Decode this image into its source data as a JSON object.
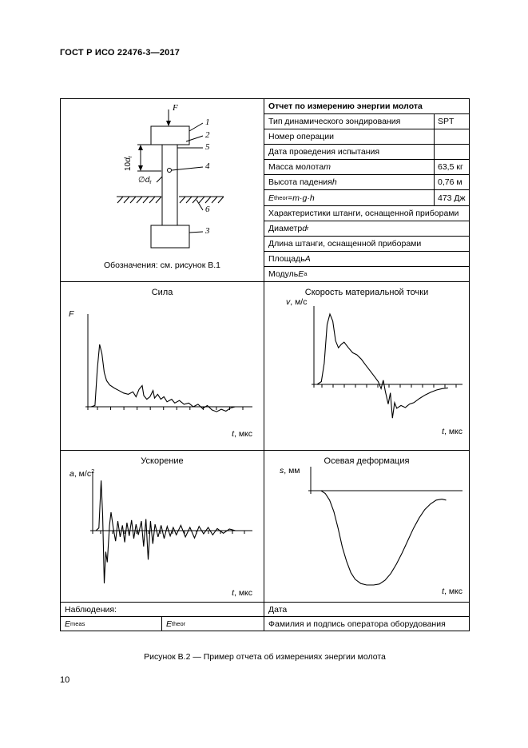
{
  "page": {
    "header": "ГОСТ Р ИСО 22476-3—2017",
    "caption": "Рисунок В.2 — Пример отчета об измерениях энергии молота",
    "page_number": "10"
  },
  "diagram": {
    "caption": "Обозначения: см. рисунок В.1",
    "force_label": [
      {
        "t": "F",
        "i": true
      }
    ],
    "callouts": [
      "1",
      "2",
      "5",
      "4",
      "6",
      "3"
    ],
    "dim_label": [
      {
        "t": "10"
      },
      {
        "t": "d",
        "i": true
      },
      {
        "t": "r",
        "sub": true
      }
    ],
    "diameter_label": [
      {
        "t": "∅"
      },
      {
        "t": "d",
        "i": true
      },
      {
        "t": "r",
        "sub": true
      }
    ]
  },
  "report": {
    "title": "Отчет по измерению энергии молота",
    "rows": [
      {
        "label": [
          {
            "t": "Тип динамического зондирования"
          }
        ],
        "value": "SPT"
      },
      {
        "label": [
          {
            "t": "Номер операции"
          }
        ],
        "value": ""
      },
      {
        "label": [
          {
            "t": "Дата проведения испытания"
          }
        ],
        "value": ""
      },
      {
        "label": [
          {
            "t": "Масса молота "
          },
          {
            "t": "m",
            "i": true
          }
        ],
        "value": "63,5 кг"
      },
      {
        "label": [
          {
            "t": "Высота падения "
          },
          {
            "t": "h",
            "i": true
          }
        ],
        "value": "0,76 м"
      },
      {
        "label": [
          {
            "t": "E",
            "i": true
          },
          {
            "t": "theor",
            "sub": true
          },
          {
            "t": " = "
          },
          {
            "t": "m·g·h",
            "i": true
          }
        ],
        "value": "473 Дж"
      },
      {
        "label": [
          {
            "t": "Характеристики штанги, оснащенной приборами"
          }
        ],
        "full": true
      },
      {
        "label": [
          {
            "t": "Диаметр "
          },
          {
            "t": "d",
            "i": true
          },
          {
            "t": "r",
            "sub": true
          }
        ],
        "full": true
      },
      {
        "label": [
          {
            "t": "Длина штанги, оснащенной приборами"
          }
        ],
        "full": true
      },
      {
        "label": [
          {
            "t": "Площадь "
          },
          {
            "t": "A",
            "i": true
          }
        ],
        "full": true
      },
      {
        "label": [
          {
            "t": "Модуль "
          },
          {
            "t": "E",
            "i": true
          },
          {
            "t": "a",
            "sub": true
          }
        ],
        "full": true
      }
    ]
  },
  "chart_data": [
    {
      "type": "line",
      "title": "Сила",
      "ylabel": "F",
      "xlabel": "t, мкс",
      "ylabel_segs": [
        {
          "t": "F",
          "i": true
        }
      ],
      "xlabel_segs": [
        {
          "t": "t",
          "i": true
        },
        {
          "t": ", мкс"
        }
      ],
      "x_range": [
        0,
        1
      ],
      "y_range": [
        -0.1,
        1
      ],
      "units": "normalized (no numeric scale shown)",
      "points": [
        [
          0.0,
          0.0
        ],
        [
          0.025,
          0.02
        ],
        [
          0.04,
          0.6
        ],
        [
          0.055,
          1.0
        ],
        [
          0.07,
          0.85
        ],
        [
          0.085,
          0.55
        ],
        [
          0.1,
          0.42
        ],
        [
          0.12,
          0.35
        ],
        [
          0.15,
          0.3
        ],
        [
          0.18,
          0.26
        ],
        [
          0.21,
          0.22
        ],
        [
          0.24,
          0.2
        ],
        [
          0.27,
          0.24
        ],
        [
          0.29,
          0.16
        ],
        [
          0.31,
          0.28
        ],
        [
          0.33,
          0.34
        ],
        [
          0.34,
          0.18
        ],
        [
          0.36,
          0.12
        ],
        [
          0.38,
          0.16
        ],
        [
          0.4,
          0.26
        ],
        [
          0.41,
          0.14
        ],
        [
          0.43,
          0.2
        ],
        [
          0.45,
          0.12
        ],
        [
          0.47,
          0.16
        ],
        [
          0.49,
          0.08
        ],
        [
          0.52,
          0.12
        ],
        [
          0.54,
          0.06
        ],
        [
          0.57,
          0.1
        ],
        [
          0.6,
          0.04
        ],
        [
          0.63,
          0.06
        ],
        [
          0.66,
          0.0
        ],
        [
          0.69,
          0.04
        ],
        [
          0.72,
          -0.03
        ],
        [
          0.75,
          0.02
        ],
        [
          0.78,
          -0.05
        ],
        [
          0.81,
          -0.08
        ],
        [
          0.84,
          -0.04
        ],
        [
          0.87,
          -0.07
        ],
        [
          0.9,
          -0.02
        ],
        [
          0.93,
          0.0
        ]
      ]
    },
    {
      "type": "line",
      "title": "Скорость материальной точки",
      "ylabel": "v, м/с",
      "xlabel": "t, мкс",
      "ylabel_segs": [
        {
          "t": "v",
          "i": true
        },
        {
          "t": ", м/с"
        }
      ],
      "xlabel_segs": [
        {
          "t": "t",
          "i": true
        },
        {
          "t": ", мкс"
        }
      ],
      "x_range": [
        0,
        1
      ],
      "y_range": [
        -0.5,
        1
      ],
      "units": "normalized (no numeric scale shown)",
      "points": [
        [
          0.0,
          0.0
        ],
        [
          0.03,
          0.04
        ],
        [
          0.05,
          0.3
        ],
        [
          0.07,
          0.85
        ],
        [
          0.09,
          1.0
        ],
        [
          0.11,
          0.9
        ],
        [
          0.13,
          0.62
        ],
        [
          0.15,
          0.52
        ],
        [
          0.17,
          0.57
        ],
        [
          0.19,
          0.6
        ],
        [
          0.22,
          0.52
        ],
        [
          0.25,
          0.45
        ],
        [
          0.28,
          0.42
        ],
        [
          0.31,
          0.36
        ],
        [
          0.34,
          0.28
        ],
        [
          0.37,
          0.2
        ],
        [
          0.4,
          0.12
        ],
        [
          0.43,
          0.04
        ],
        [
          0.45,
          -0.06
        ],
        [
          0.465,
          0.06
        ],
        [
          0.48,
          -0.1
        ],
        [
          0.5,
          -0.28
        ],
        [
          0.515,
          -0.12
        ],
        [
          0.53,
          -0.48
        ],
        [
          0.545,
          -0.26
        ],
        [
          0.56,
          -0.34
        ],
        [
          0.59,
          -0.3
        ],
        [
          0.62,
          -0.33
        ],
        [
          0.65,
          -0.28
        ],
        [
          0.68,
          -0.26
        ],
        [
          0.72,
          -0.2
        ],
        [
          0.76,
          -0.15
        ],
        [
          0.8,
          -0.11
        ],
        [
          0.84,
          -0.08
        ],
        [
          0.88,
          -0.06
        ],
        [
          0.92,
          -0.05
        ]
      ]
    },
    {
      "type": "line",
      "title": "Ускорение",
      "ylabel": "a, м/с2",
      "xlabel": "t, мкс",
      "ylabel_segs": [
        {
          "t": "a",
          "i": true
        },
        {
          "t": ", м/с"
        },
        {
          "t": "2",
          "sup": true
        }
      ],
      "xlabel_segs": [
        {
          "t": "t",
          "i": true
        },
        {
          "t": ", мкс"
        }
      ],
      "x_range": [
        0,
        1
      ],
      "y_range": [
        -1,
        1
      ],
      "units": "normalized (no numeric scale shown)",
      "points": [
        [
          0.0,
          0.0
        ],
        [
          0.02,
          0.05
        ],
        [
          0.035,
          0.95
        ],
        [
          0.045,
          0.3
        ],
        [
          0.055,
          -1.0
        ],
        [
          0.065,
          -0.4
        ],
        [
          0.075,
          -0.6
        ],
        [
          0.09,
          0.1
        ],
        [
          0.1,
          0.35
        ],
        [
          0.115,
          0.05
        ],
        [
          0.13,
          -0.2
        ],
        [
          0.145,
          0.18
        ],
        [
          0.16,
          -0.12
        ],
        [
          0.175,
          0.1
        ],
        [
          0.19,
          -0.22
        ],
        [
          0.205,
          0.15
        ],
        [
          0.22,
          -0.1
        ],
        [
          0.235,
          0.2
        ],
        [
          0.25,
          -0.15
        ],
        [
          0.265,
          0.12
        ],
        [
          0.28,
          -0.08
        ],
        [
          0.3,
          0.18
        ],
        [
          0.315,
          -0.3
        ],
        [
          0.33,
          0.22
        ],
        [
          0.345,
          -0.55
        ],
        [
          0.36,
          0.18
        ],
        [
          0.375,
          -0.25
        ],
        [
          0.39,
          0.12
        ],
        [
          0.41,
          -0.12
        ],
        [
          0.43,
          0.1
        ],
        [
          0.45,
          -0.15
        ],
        [
          0.47,
          0.08
        ],
        [
          0.49,
          -0.1
        ],
        [
          0.51,
          0.06
        ],
        [
          0.53,
          -0.08
        ],
        [
          0.56,
          0.1
        ],
        [
          0.59,
          -0.12
        ],
        [
          0.62,
          0.06
        ],
        [
          0.65,
          -0.14
        ],
        [
          0.68,
          0.08
        ],
        [
          0.71,
          -0.06
        ],
        [
          0.74,
          0.06
        ],
        [
          0.77,
          -0.08
        ],
        [
          0.8,
          0.04
        ],
        [
          0.84,
          -0.05
        ],
        [
          0.88,
          0.03
        ],
        [
          0.92,
          0.0
        ]
      ]
    },
    {
      "type": "line",
      "title": "Осевая деформация",
      "ylabel": "s, мм",
      "xlabel": "t, мкс",
      "ylabel_segs": [
        {
          "t": "s",
          "i": true
        },
        {
          "t": ", мм"
        }
      ],
      "xlabel_segs": [
        {
          "t": "t",
          "i": true
        },
        {
          "t": ", мкс"
        }
      ],
      "x_range": [
        0,
        1
      ],
      "y_range": [
        -1,
        0
      ],
      "units": "normalized (no numeric scale shown)",
      "points": [
        [
          0.0,
          0.0
        ],
        [
          0.05,
          0.0
        ],
        [
          0.08,
          -0.03
        ],
        [
          0.11,
          -0.1
        ],
        [
          0.14,
          -0.22
        ],
        [
          0.17,
          -0.4
        ],
        [
          0.2,
          -0.6
        ],
        [
          0.23,
          -0.75
        ],
        [
          0.26,
          -0.87
        ],
        [
          0.29,
          -0.94
        ],
        [
          0.33,
          -0.985
        ],
        [
          0.37,
          -1.0
        ],
        [
          0.42,
          -1.0
        ],
        [
          0.46,
          -0.99
        ],
        [
          0.5,
          -0.95
        ],
        [
          0.54,
          -0.88
        ],
        [
          0.58,
          -0.78
        ],
        [
          0.62,
          -0.66
        ],
        [
          0.66,
          -0.53
        ],
        [
          0.7,
          -0.4
        ],
        [
          0.74,
          -0.29
        ],
        [
          0.78,
          -0.2
        ],
        [
          0.82,
          -0.14
        ],
        [
          0.86,
          -0.1
        ],
        [
          0.9,
          -0.09
        ],
        [
          0.93,
          -0.1
        ]
      ]
    }
  ],
  "footer": {
    "observations": "Наблюдения:",
    "date": "Дата",
    "e_meas": [
      {
        "t": "E",
        "i": true
      },
      {
        "t": "meas",
        "sub": true
      }
    ],
    "e_theor": [
      {
        "t": "E",
        "i": true
      },
      {
        "t": "theor",
        "sub": true
      }
    ],
    "operator": "Фамилия и подпись оператора оборудования"
  }
}
